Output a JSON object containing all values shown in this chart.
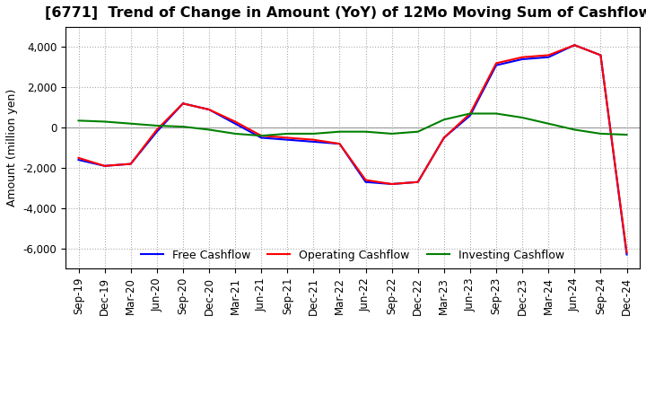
{
  "title": "[6771]  Trend of Change in Amount (YoY) of 12Mo Moving Sum of Cashflows",
  "ylabel": "Amount (million yen)",
  "xlabels": [
    "Sep-19",
    "Dec-19",
    "Mar-20",
    "Jun-20",
    "Sep-20",
    "Dec-20",
    "Mar-21",
    "Jun-21",
    "Sep-21",
    "Dec-21",
    "Mar-22",
    "Jun-22",
    "Sep-22",
    "Dec-22",
    "Mar-23",
    "Jun-23",
    "Sep-23",
    "Dec-23",
    "Mar-24",
    "Jun-24",
    "Sep-24",
    "Dec-24"
  ],
  "operating_cashflow": [
    -1500,
    -1900,
    -1800,
    -100,
    1200,
    900,
    300,
    -400,
    -500,
    -600,
    -800,
    -2600,
    -2800,
    -2700,
    -500,
    700,
    3200,
    3500,
    3600,
    4100,
    3600,
    -6200
  ],
  "investing_cashflow": [
    350,
    300,
    200,
    100,
    50,
    -100,
    -300,
    -400,
    -300,
    -300,
    -200,
    -200,
    -300,
    -200,
    400,
    700,
    700,
    500,
    200,
    -100,
    -300,
    -350
  ],
  "free_cashflow": [
    -1600,
    -1900,
    -1800,
    -200,
    1200,
    900,
    200,
    -500,
    -600,
    -700,
    -800,
    -2700,
    -2800,
    -2700,
    -500,
    600,
    3100,
    3400,
    3500,
    4100,
    3600,
    -6300
  ],
  "ylim": [
    -7000,
    5000
  ],
  "yticks": [
    -6000,
    -4000,
    -2000,
    0,
    2000,
    4000
  ],
  "operating_color": "#ff0000",
  "investing_color": "#008000",
  "free_color": "#0000ff",
  "background_color": "#ffffff",
  "grid_color": "#aaaaaa",
  "title_fontsize": 11.5,
  "axis_fontsize": 9,
  "tick_fontsize": 8.5,
  "legend_fontsize": 9
}
